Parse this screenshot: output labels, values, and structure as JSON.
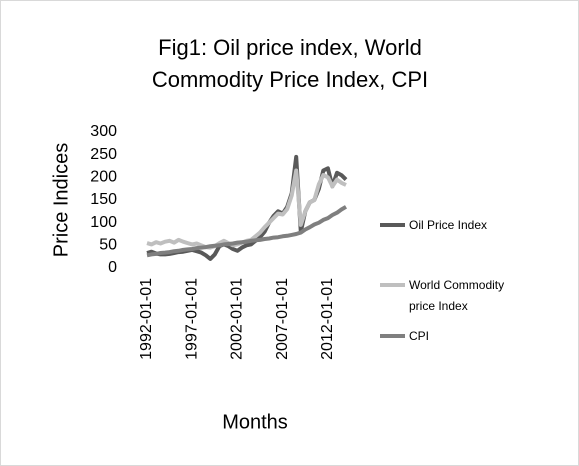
{
  "chart_data": {
    "type": "line",
    "title": "Fig1: Oil price index, World Commodity Price Index, CPI",
    "x_label": "Months",
    "y_label": "Price Indices",
    "x": [
      "1992-01-01",
      "1992-07-01",
      "1993-01-01",
      "1993-07-01",
      "1994-01-01",
      "1994-07-01",
      "1995-01-01",
      "1995-07-01",
      "1996-01-01",
      "1996-07-01",
      "1997-01-01",
      "1997-07-01",
      "1998-01-01",
      "1998-07-01",
      "1999-01-01",
      "1999-07-01",
      "2000-01-01",
      "2000-07-01",
      "2001-01-01",
      "2001-07-01",
      "2002-01-01",
      "2002-07-01",
      "2003-01-01",
      "2003-07-01",
      "2004-01-01",
      "2004-07-01",
      "2005-01-01",
      "2005-07-01",
      "2006-01-01",
      "2006-07-01",
      "2007-01-01",
      "2007-07-01",
      "2008-01-01",
      "2008-07-01",
      "2009-01-01",
      "2009-07-01",
      "2010-01-01",
      "2010-07-01",
      "2011-01-01",
      "2011-07-01",
      "2012-01-01",
      "2012-07-01",
      "2013-01-01",
      "2013-07-01",
      "2014-01-01"
    ],
    "series": [
      {
        "name": "Oil Price Index",
        "color": "#595959",
        "values": [
          33,
          36,
          32,
          30,
          30,
          31,
          33,
          35,
          36,
          38,
          40,
          37,
          34,
          28,
          20,
          30,
          48,
          52,
          48,
          42,
          38,
          45,
          50,
          52,
          60,
          68,
          80,
          100,
          115,
          125,
          120,
          135,
          165,
          245,
          80,
          125,
          145,
          150,
          175,
          215,
          220,
          180,
          210,
          205,
          195
        ]
      },
      {
        "name": "World Commodity price Index",
        "color": "#bfbfbf",
        "values": [
          55,
          52,
          57,
          54,
          58,
          60,
          56,
          62,
          58,
          55,
          52,
          54,
          50,
          46,
          45,
          48,
          55,
          60,
          55,
          50,
          52,
          56,
          60,
          62,
          70,
          78,
          90,
          100,
          110,
          120,
          118,
          130,
          160,
          215,
          95,
          125,
          145,
          150,
          185,
          205,
          200,
          180,
          195,
          188,
          183
        ]
      },
      {
        "name": "CPI",
        "color": "#7f7f7f",
        "values": [
          28,
          30,
          31,
          33,
          34,
          35,
          37,
          38,
          40,
          41,
          42,
          44,
          45,
          46,
          48,
          49,
          50,
          52,
          53,
          54,
          56,
          57,
          58,
          60,
          61,
          62,
          64,
          65,
          67,
          68,
          70,
          71,
          73,
          75,
          78,
          85,
          90,
          96,
          100,
          106,
          110,
          117,
          122,
          129,
          135
        ]
      }
    ],
    "xlim": [
      "1992-01-01",
      "2014-01-01"
    ],
    "xticks": [
      "1992-01-01",
      "1997-01-01",
      "2002-01-01",
      "2007-01-01",
      "2012-01-01"
    ],
    "ylim": [
      0,
      300
    ],
    "yticks": [
      0,
      50,
      100,
      150,
      200,
      250,
      300
    ],
    "grid": false
  }
}
